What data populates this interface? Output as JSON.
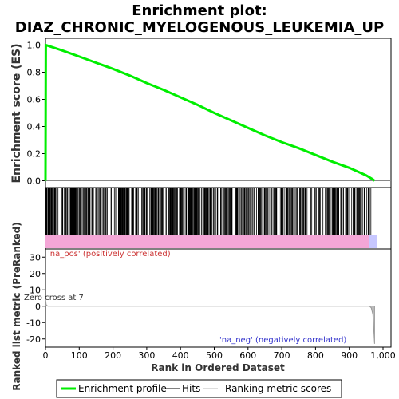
{
  "chart_data": {
    "type": "line",
    "title_line1": "Enrichment plot:",
    "title_line2": "DIAZ_CHRONIC_MYELOGENOUS_LEUKEMIA_UP",
    "xlabel": "Rank in Ordered Dataset",
    "es_panel": {
      "ylabel": "Enrichment score (ES)",
      "ylim": [
        -0.05,
        1.05
      ],
      "yticks": [
        "0.0",
        "0.2",
        "0.4",
        "0.6",
        "0.8",
        "1.0"
      ],
      "series": {
        "name": "Enrichment profile",
        "color": "#00ee00",
        "x": [
          0,
          1,
          50,
          100,
          150,
          200,
          250,
          300,
          350,
          400,
          450,
          500,
          550,
          600,
          650,
          700,
          750,
          800,
          850,
          900,
          950,
          970,
          975
        ],
        "y": [
          0.0,
          1.0,
          0.96,
          0.915,
          0.87,
          0.825,
          0.775,
          0.72,
          0.67,
          0.615,
          0.56,
          0.5,
          0.445,
          0.39,
          0.335,
          0.285,
          0.24,
          0.19,
          0.14,
          0.095,
          0.04,
          0.01,
          0.0
        ]
      }
    },
    "hits_panel": {
      "name": "Hits",
      "hit_color": "#000000",
      "n_hits_visible": 500
    },
    "metric_panel": {
      "ylabel": "Ranked list metric (PreRanked)",
      "ylim": [
        -25,
        35
      ],
      "yticks": [
        "-20",
        "-10",
        "0",
        "10",
        "20",
        "30"
      ],
      "series": {
        "name": "Ranking metric scores",
        "color": "#bbbbbb",
        "x": [
          0,
          2,
          7,
          960,
          965,
          970,
          975
        ],
        "y": [
          5,
          1,
          0,
          0,
          -1,
          -5,
          -23
        ]
      },
      "annotations": {
        "pos": "'na_pos' (positively correlated)",
        "neg": "'na_neg' (negatively correlated)",
        "zero_cross": "Zero cross at 7"
      }
    },
    "xlim": [
      0,
      1000
    ],
    "xticks": [
      "0",
      "100",
      "200",
      "300",
      "400",
      "500",
      "600",
      "700",
      "800",
      "900",
      "1,000"
    ],
    "xtick_values": [
      0,
      100,
      200,
      300,
      400,
      500,
      600,
      700,
      800,
      900,
      1000
    ],
    "es_tick_values": [
      0.0,
      0.2,
      0.4,
      0.6,
      0.8,
      1.0
    ],
    "metric_tick_values": [
      -20,
      -10,
      0,
      10,
      20,
      30
    ],
    "legend": {
      "items": [
        {
          "label": "Enrichment profile",
          "color": "#00ee00"
        },
        {
          "label": "Hits",
          "color": "#000000"
        },
        {
          "label": "Ranking metric scores",
          "color": "#bbbbbb"
        }
      ]
    },
    "colors": {
      "pos_band": "#f4a6d7",
      "neg_band": "#c7c7ff"
    }
  }
}
